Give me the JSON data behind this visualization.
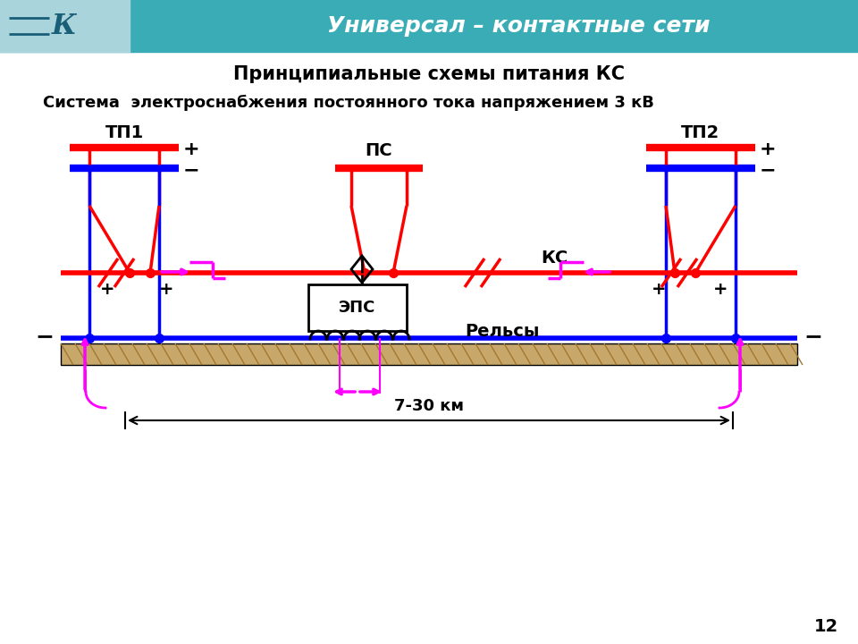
{
  "title1": "Принципиальные схемы питания КС",
  "title2": "Система  электроснабжения постоянного тока напряжением 3 кВ",
  "header_text": "Универсал – контактные сети",
  "page_num": "12",
  "bg_color": "#ffffff",
  "header_bg": "#3aacb5",
  "header_logo_bg": "#aad4dc",
  "red": "#ff0000",
  "blue": "#0000ff",
  "magenta": "#ff00ff",
  "black": "#000000",
  "tan": "#c8a86a",
  "hatch_color": "#a07830",
  "tp1_label": "ТП1",
  "tp2_label": "ТП2",
  "ps_label": "ПС",
  "ks_label": "КС",
  "eps_label": "ЭПС",
  "rails_label": "Рельсы",
  "dist_label": "7-30 км",
  "plus": "+",
  "minus": "−"
}
